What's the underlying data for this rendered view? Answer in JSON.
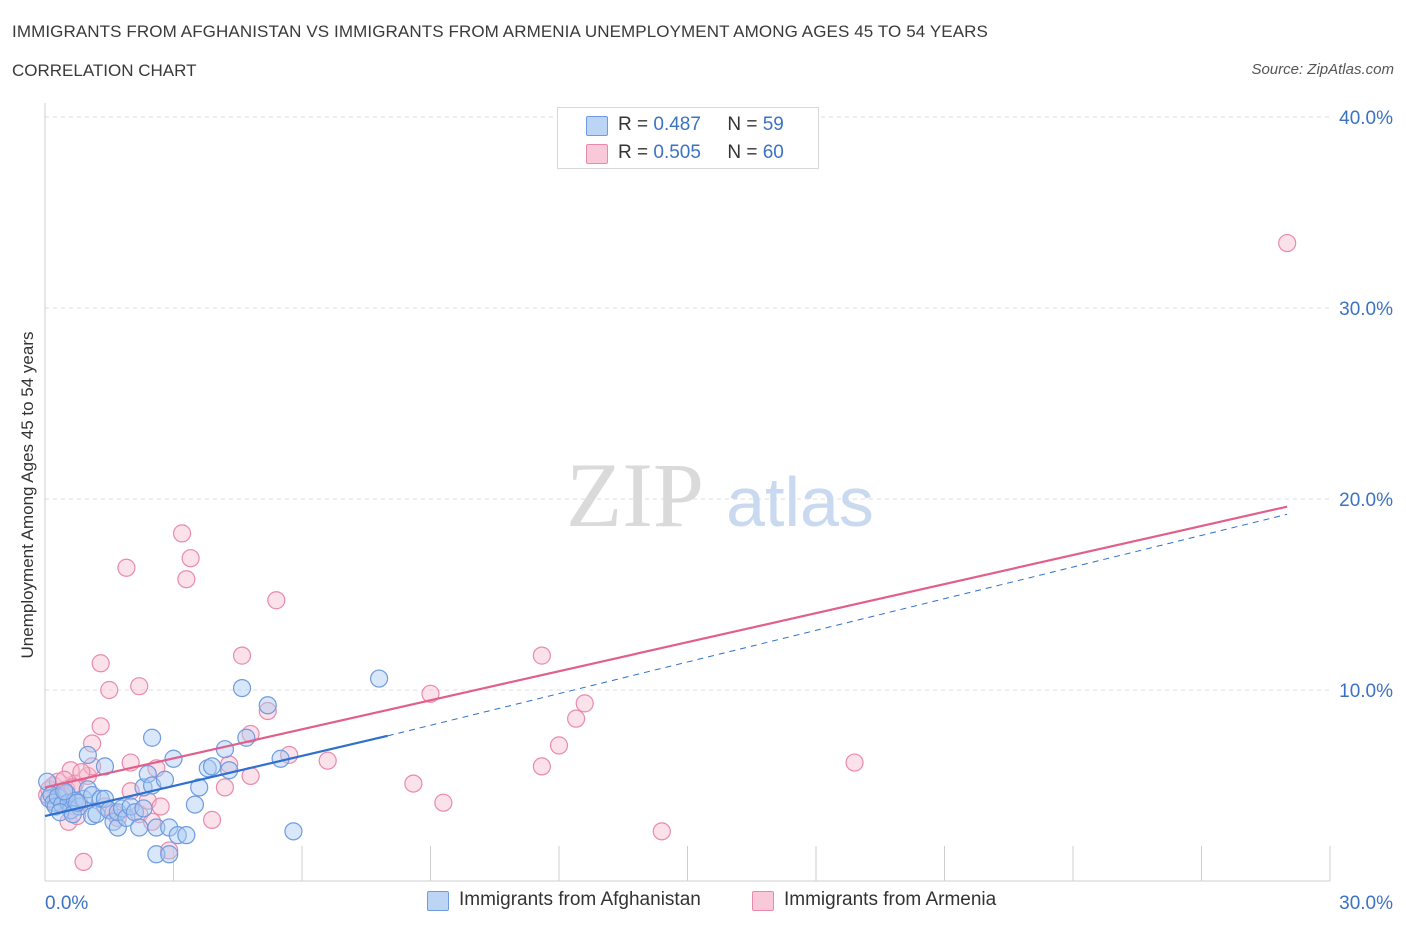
{
  "header": {
    "title": "IMMIGRANTS FROM AFGHANISTAN VS IMMIGRANTS FROM ARMENIA UNEMPLOYMENT AMONG AGES 45 TO 54 YEARS",
    "subtitle": "CORRELATION CHART",
    "source": "Source: ZipAtlas.com"
  },
  "watermark": {
    "zip": "ZIP",
    "atlas": "atlas"
  },
  "colors": {
    "blue_fill": "#a9c9f2",
    "blue_stroke": "#6f9be0",
    "blue_line": "#2f6fce",
    "pink_fill": "#f7bcd0",
    "pink_stroke": "#ea8aaa",
    "pink_line": "#e0608a",
    "axis_text": "#3b72c4",
    "grid": "#dcdcdc"
  },
  "legend": {
    "r_label": "R =",
    "n_label": "N =",
    "series": [
      {
        "name": "Immigrants from Afghanistan",
        "r": "0.487",
        "n": "59"
      },
      {
        "name": "Immigrants from Armenia",
        "r": "0.505",
        "n": "60"
      }
    ]
  },
  "chart_data": {
    "type": "scatter",
    "xlabel": "",
    "ylabel": "Unemployment Among Ages 45 to 54 years",
    "xlim": [
      0,
      30
    ],
    "ylim": [
      0,
      40
    ],
    "x_tick_labels": [
      {
        "value": 0,
        "label": "0.0%"
      },
      {
        "value": 30,
        "label": "30.0%"
      }
    ],
    "y_tick_labels": [
      {
        "value": 10,
        "label": "10.0%"
      },
      {
        "value": 20,
        "label": "20.0%"
      },
      {
        "value": 30,
        "label": "30.0%"
      },
      {
        "value": 40,
        "label": "40.0%"
      }
    ],
    "series": [
      {
        "name": "Immigrants from Afghanistan",
        "color": "blue",
        "points": [
          [
            0.05,
            5.2
          ],
          [
            0.1,
            4.3
          ],
          [
            0.15,
            4.5
          ],
          [
            0.2,
            4.1
          ],
          [
            0.25,
            3.9
          ],
          [
            0.3,
            4.4
          ],
          [
            0.4,
            4.0
          ],
          [
            0.5,
            4.6
          ],
          [
            0.55,
            4.1
          ],
          [
            0.6,
            3.7
          ],
          [
            0.7,
            4.2
          ],
          [
            0.8,
            3.9
          ],
          [
            0.9,
            4.3
          ],
          [
            1.0,
            4.8
          ],
          [
            1.0,
            6.6
          ],
          [
            1.1,
            4.5
          ],
          [
            1.1,
            3.4
          ],
          [
            1.2,
            3.5
          ],
          [
            1.3,
            4.3
          ],
          [
            1.4,
            4.3
          ],
          [
            1.4,
            6.0
          ],
          [
            1.5,
            3.7
          ],
          [
            1.6,
            3.1
          ],
          [
            1.7,
            2.8
          ],
          [
            1.7,
            3.6
          ],
          [
            1.8,
            3.8
          ],
          [
            1.9,
            3.3
          ],
          [
            2.0,
            3.9
          ],
          [
            2.1,
            3.6
          ],
          [
            2.2,
            2.8
          ],
          [
            2.3,
            3.8
          ],
          [
            2.3,
            4.9
          ],
          [
            2.4,
            5.6
          ],
          [
            2.5,
            5.0
          ],
          [
            2.5,
            7.5
          ],
          [
            2.6,
            1.4
          ],
          [
            2.6,
            2.8
          ],
          [
            2.8,
            5.3
          ],
          [
            2.9,
            1.4
          ],
          [
            2.9,
            2.8
          ],
          [
            3.0,
            6.4
          ],
          [
            3.1,
            2.4
          ],
          [
            3.3,
            2.4
          ],
          [
            3.5,
            4.0
          ],
          [
            3.6,
            4.9
          ],
          [
            3.8,
            5.9
          ],
          [
            3.9,
            6.0
          ],
          [
            4.2,
            6.9
          ],
          [
            4.3,
            5.8
          ],
          [
            4.6,
            10.1
          ],
          [
            4.7,
            7.5
          ],
          [
            5.2,
            9.2
          ],
          [
            5.5,
            6.4
          ],
          [
            5.8,
            2.6
          ],
          [
            7.8,
            10.6
          ],
          [
            0.35,
            3.6
          ],
          [
            0.45,
            4.7
          ],
          [
            0.65,
            3.5
          ],
          [
            0.75,
            4.1
          ]
        ],
        "trend": {
          "x": [
            0,
            8
          ],
          "y": [
            3.4,
            7.6
          ],
          "style": "solid"
        },
        "trend_extension": {
          "x": [
            8,
            29
          ],
          "y": [
            7.6,
            19.2
          ],
          "style": "dashed"
        }
      },
      {
        "name": "Immigrants from Armenia",
        "color": "pink",
        "points": [
          [
            0.05,
            4.5
          ],
          [
            0.1,
            4.8
          ],
          [
            0.2,
            5.0
          ],
          [
            0.3,
            5.2
          ],
          [
            0.35,
            4.4
          ],
          [
            0.4,
            4.5
          ],
          [
            0.5,
            4.8
          ],
          [
            0.55,
            3.1
          ],
          [
            0.6,
            5.8
          ],
          [
            0.7,
            5.1
          ],
          [
            0.75,
            3.4
          ],
          [
            0.8,
            4.1
          ],
          [
            0.9,
            1.0
          ],
          [
            1.0,
            5.5
          ],
          [
            1.1,
            6.0
          ],
          [
            1.1,
            7.2
          ],
          [
            1.3,
            11.4
          ],
          [
            1.3,
            8.1
          ],
          [
            1.4,
            3.9
          ],
          [
            1.5,
            10.0
          ],
          [
            1.6,
            3.6
          ],
          [
            1.7,
            3.3
          ],
          [
            1.9,
            16.4
          ],
          [
            2.0,
            4.7
          ],
          [
            2.0,
            6.2
          ],
          [
            2.2,
            10.2
          ],
          [
            2.2,
            3.5
          ],
          [
            2.4,
            4.2
          ],
          [
            2.5,
            3.1
          ],
          [
            2.6,
            5.9
          ],
          [
            2.7,
            3.9
          ],
          [
            2.9,
            1.6
          ],
          [
            3.2,
            18.2
          ],
          [
            3.3,
            15.8
          ],
          [
            3.4,
            16.9
          ],
          [
            3.9,
            3.2
          ],
          [
            4.2,
            4.9
          ],
          [
            4.3,
            6.1
          ],
          [
            4.6,
            11.8
          ],
          [
            4.8,
            7.7
          ],
          [
            4.8,
            5.5
          ],
          [
            5.2,
            8.9
          ],
          [
            5.4,
            14.7
          ],
          [
            5.7,
            6.6
          ],
          [
            6.6,
            6.3
          ],
          [
            8.6,
            5.1
          ],
          [
            9.0,
            9.8
          ],
          [
            9.3,
            4.1
          ],
          [
            11.6,
            11.8
          ],
          [
            11.6,
            6.0
          ],
          [
            12.0,
            7.1
          ],
          [
            12.4,
            8.5
          ],
          [
            12.6,
            9.3
          ],
          [
            14.4,
            2.6
          ],
          [
            18.9,
            6.2
          ],
          [
            29.0,
            33.4
          ],
          [
            0.25,
            4.1
          ],
          [
            0.45,
            5.3
          ],
          [
            0.65,
            4.9
          ],
          [
            0.85,
            5.7
          ]
        ],
        "trend": {
          "x": [
            0,
            29
          ],
          "y": [
            4.9,
            19.6
          ],
          "style": "solid"
        }
      }
    ]
  }
}
